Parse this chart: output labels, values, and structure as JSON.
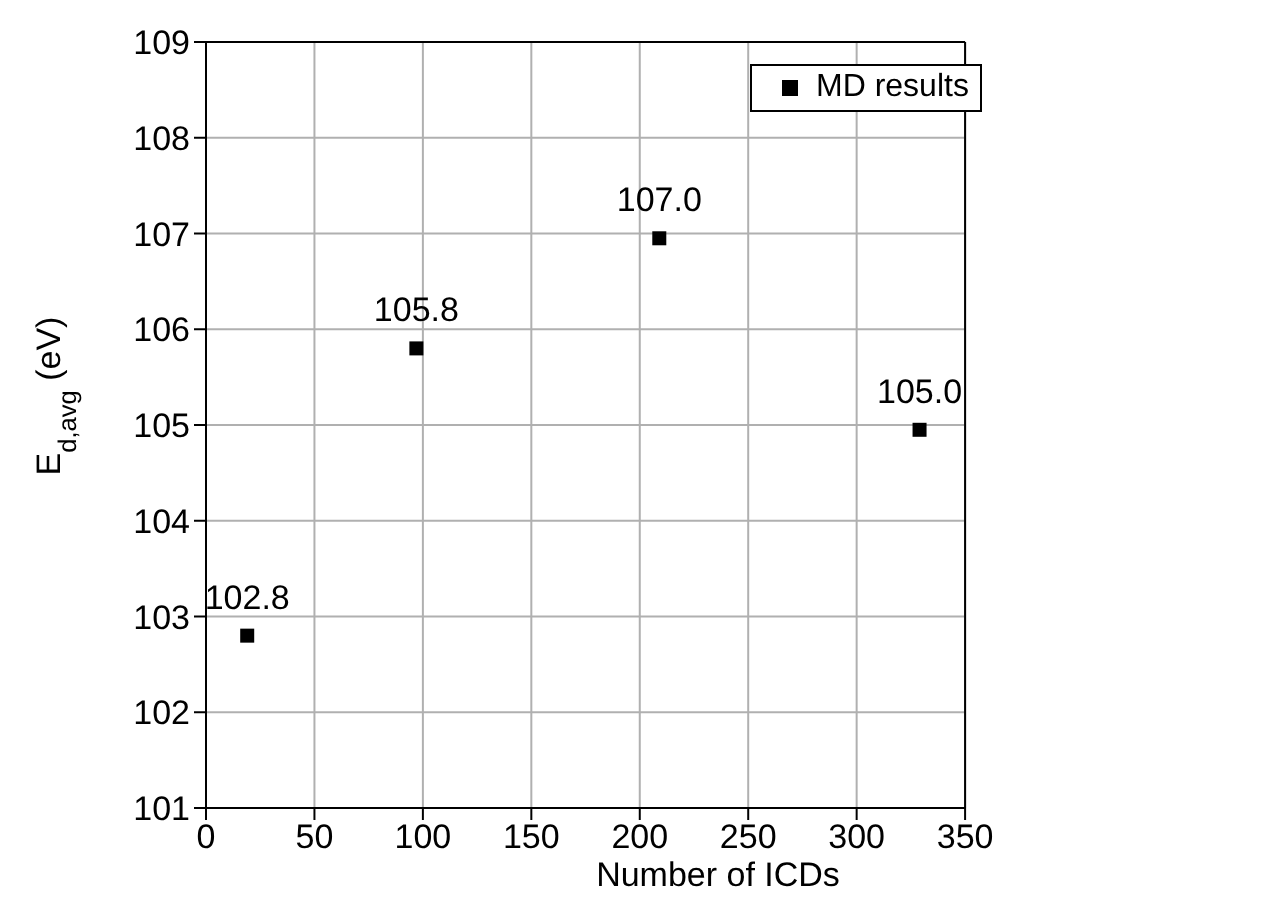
{
  "chart_data": {
    "type": "scatter",
    "xlabel": "Number of ICDs",
    "ylabel": "E$_{d,avg}$ (eV)",
    "x": [
      19,
      97,
      209,
      329
    ],
    "series": [
      {
        "name": "MD results",
        "color": "#000000",
        "values": [
          102.8,
          105.8,
          106.95,
          104.95
        ],
        "value_labels": [
          "102.8",
          "105.8",
          "107.0",
          "105.0"
        ]
      }
    ],
    "xlim": [
      0,
      350
    ],
    "xticks": [
      0,
      50,
      100,
      150,
      200,
      250,
      300,
      350
    ],
    "ylim": [
      101,
      109
    ],
    "yticks": [
      101,
      102,
      103,
      104,
      105,
      106,
      107,
      108,
      109
    ],
    "grid": true,
    "legend": "top right",
    "marker": "square"
  }
}
